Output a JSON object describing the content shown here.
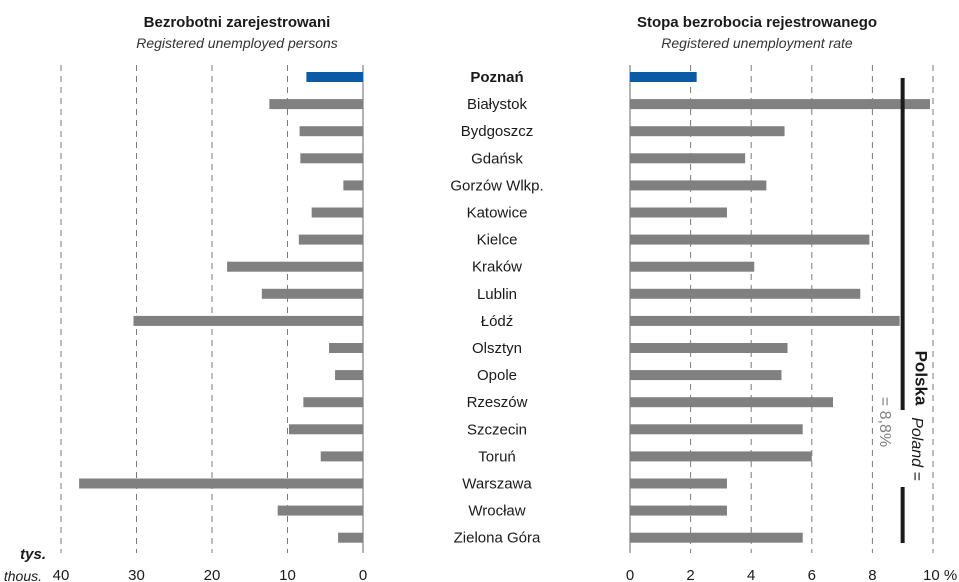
{
  "colors": {
    "highlight": "#0b5aa6",
    "bar": "#808080",
    "grid": "#7a7a7a",
    "axis": "#9a9a9a",
    "average_line": "#1a1a1a"
  },
  "chart_data": [
    {
      "type": "bar",
      "orientation": "horizontal",
      "direction": "right-to-left",
      "title": "Bezrobotni zarejestrowani",
      "subtitle": "Registered unemployed persons",
      "unit_pl": "tys.",
      "unit_en": "thous.",
      "xlim": [
        0,
        40
      ],
      "xticks": [
        "40",
        "30",
        "20",
        "10",
        "0"
      ],
      "grid": true,
      "categories": [
        "Poznań",
        "Białystok",
        "Bydgoszcz",
        "Gdańsk",
        "Gorzów Wlkp.",
        "Katowice",
        "Kielce",
        "Kraków",
        "Lublin",
        "Łódź",
        "Olsztyn",
        "Opole",
        "Rzeszów",
        "Szczecin",
        "Toruń",
        "Warszawa",
        "Wrocław",
        "Zielona Góra"
      ],
      "values": [
        7.5,
        12.4,
        8.4,
        8.3,
        2.6,
        6.8,
        8.5,
        18.0,
        13.4,
        30.4,
        4.5,
        3.7,
        7.9,
        9.8,
        5.6,
        37.6,
        11.3,
        3.3
      ],
      "highlight": "Poznań"
    },
    {
      "type": "bar",
      "orientation": "horizontal",
      "title": "Stopa bezrobocia rejestrowanego",
      "subtitle": "Registered unemployment rate",
      "xlim": [
        0,
        10
      ],
      "xticks": [
        "0",
        "2",
        "4",
        "6",
        "8",
        "10 %"
      ],
      "grid": true,
      "categories": [
        "Poznań",
        "Białystok",
        "Bydgoszcz",
        "Gdańsk",
        "Gorzów Wlkp.",
        "Katowice",
        "Kielce",
        "Kraków",
        "Lublin",
        "Łódź",
        "Olsztyn",
        "Opole",
        "Rzeszów",
        "Szczecin",
        "Toruń",
        "Warszawa",
        "Wrocław",
        "Zielona Góra"
      ],
      "values": [
        2.2,
        9.9,
        5.1,
        3.8,
        4.5,
        3.2,
        7.9,
        4.1,
        7.6,
        8.9,
        5.2,
        5.0,
        6.7,
        5.7,
        6.0,
        3.2,
        3.2,
        5.7
      ],
      "highlight": "Poznań",
      "reference_line": {
        "value": 8.8,
        "label_pl": "Polska",
        "label_en": "Poland =",
        "label_value": "= 8,8%"
      }
    }
  ]
}
